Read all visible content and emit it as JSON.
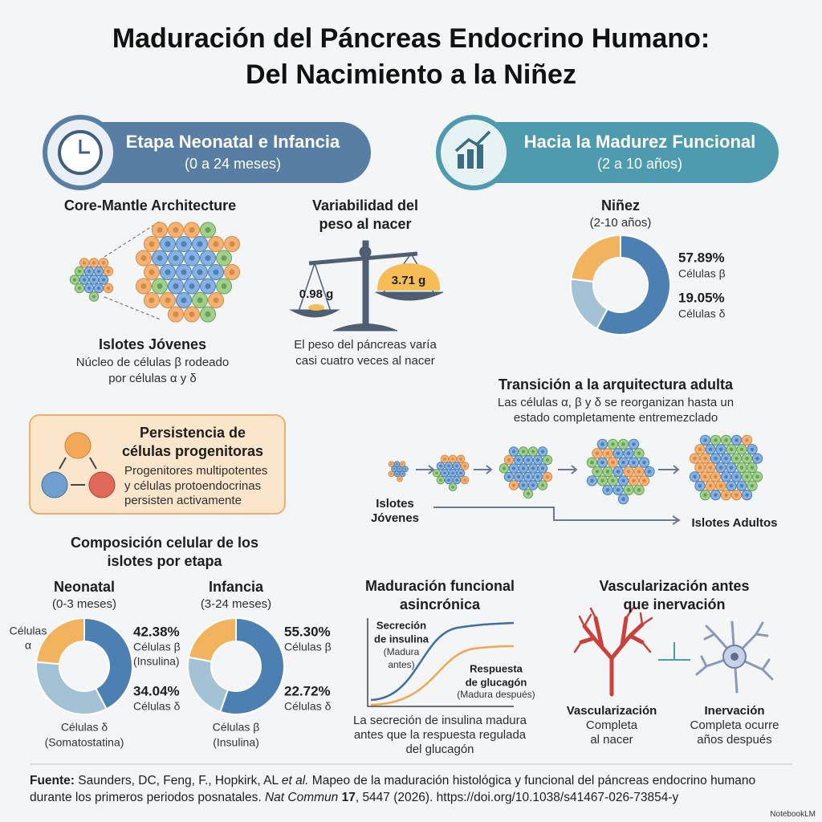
{
  "title": [
    "Maduración del Páncreas Endocrino Humano:",
    "Del Nacimiento a la Niñez"
  ],
  "stages": [
    {
      "title": "Etapa Neonatal e Infancia",
      "subtitle": "(0 a 24 meses)"
    },
    {
      "title": "Hacia la Madurez Funcional",
      "subtitle": "(2 a 10 años)"
    }
  ],
  "core_mantle": {
    "title": "Core-Mantle Architecture",
    "label": "Islotes Jóvenes",
    "description": [
      "Núcleo de células β rodeado",
      "por células α y δ"
    ]
  },
  "birth_weight": {
    "title": [
      "Variabilidad del",
      "peso al nacer"
    ],
    "weights": [
      "0.98 g",
      "3.71 g"
    ],
    "description": [
      "El peso del páncreas varía",
      "casi cuatro veces al nacer"
    ]
  },
  "childhood": {
    "title": "Niñez",
    "range": "(2-10 años)",
    "segments": [
      {
        "value": 57.89,
        "label": "57.89%",
        "name": "Células β",
        "color": "#4d80b2"
      },
      {
        "value": 19.05,
        "label": "19.05%",
        "name": "Células δ",
        "color": "#a3c2d6"
      },
      {
        "value": 23.06,
        "color": "#f2b35e"
      }
    ]
  },
  "progenitors": {
    "title": [
      "Persistencia de",
      "células progenitoras"
    ],
    "description": [
      "Progenitores multipotentes",
      "y células protoendocrinas",
      "persisten activamente"
    ]
  },
  "transition": {
    "title": "Transición a la arquitectura adulta",
    "description": [
      "Las células α, β y δ se reorganizan hasta un",
      "estado completamente entremezclado"
    ],
    "start": [
      "Islotes",
      "Jóvenes"
    ],
    "end": "Islotes Adultos"
  },
  "composition": {
    "title": [
      "Composición celular de los",
      "islotes por etapa"
    ],
    "stages": [
      {
        "title": "Neonatal",
        "range": "(0-3 meses)",
        "segments": [
          {
            "value": 42.38,
            "label": "42.38%",
            "name": [
              "Células β",
              "(Insulina)"
            ],
            "color": "#4d80b2"
          },
          {
            "value": 34.04,
            "label": "34.04%",
            "name": [
              "Células δ"
            ],
            "color": "#a3c2d6"
          },
          {
            "value": 23.58,
            "name": [
              "Células",
              "α"
            ],
            "color": "#f2b35e"
          }
        ],
        "note": [
          "Células δ",
          "(Somatostatina)"
        ]
      },
      {
        "title": "Infancia",
        "range": "(3-24 meses)",
        "segments": [
          {
            "value": 55.3,
            "label": "55.30%",
            "name": [
              "Células β"
            ],
            "color": "#4d80b2"
          },
          {
            "value": 22.72,
            "label": "22.72%",
            "name": [
              "Células δ"
            ],
            "color": "#a3c2d6"
          },
          {
            "value": 21.98,
            "color": "#f2b35e"
          }
        ],
        "note": [
          "Células β",
          "(Insulina)"
        ]
      }
    ]
  },
  "functional": {
    "title": [
      "Maduración funcional",
      "asincrónica"
    ],
    "insulin": [
      "Secreción",
      "de insulina"
    ],
    "insulin_note": [
      "(Madura",
      "antes)"
    ],
    "glucagon": [
      "Respuesta",
      "de glucagón"
    ],
    "glucagon_note": "(Madura después)",
    "description": [
      "La secreción de insulina madura",
      "antes que la respuesta regulada",
      "del glucagón"
    ]
  },
  "vascular": {
    "title": [
      "Vascularización antes",
      "que inervación"
    ],
    "items": [
      {
        "name": "Vascularización",
        "description": [
          "Completa",
          "al nacer"
        ]
      },
      {
        "name": "Inervación",
        "description": [
          "Completa ocurre",
          "años después"
        ]
      }
    ]
  },
  "source": {
    "label": "Fuente:",
    "authors": "Saunders, DC, Feng, F., Hopkirk, AL",
    "etal": "et al.",
    "article": "Mapeo de la maduración histológica y funcional del páncreas endocrino humano durante los primeros periodos posnatales.",
    "journal": "Nat Commun",
    "volume": "17",
    "rest": ", 5447 (2026). https://doi.org/10.1038/s41467-026-73854-y"
  },
  "brand": "NotebookLM"
}
